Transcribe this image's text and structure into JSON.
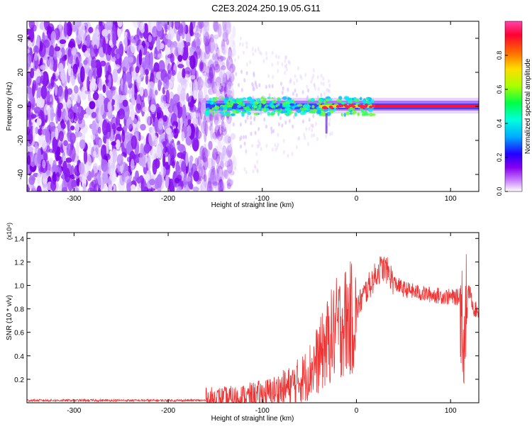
{
  "title": "C2E3.2024.250.19.05.G11",
  "chart_data": [
    {
      "type": "heatmap",
      "xlabel": "Height of straight line (km)",
      "ylabel": "Frequency (Hz)",
      "xlim": [
        -350,
        130
      ],
      "ylim": [
        -50,
        50
      ],
      "xticks": [
        -300,
        -200,
        -100,
        0,
        100
      ],
      "yticks": [
        -40,
        -20,
        0,
        20,
        40
      ],
      "colorbar": {
        "label": "Normalized spectral amplitude",
        "range": [
          0,
          1
        ],
        "ticks": [
          0.0,
          0.2,
          0.4,
          0.6,
          0.8
        ],
        "tick_labels": [
          "0.0",
          "0.2",
          "0.4",
          "0.6",
          "0.8"
        ],
        "colors": [
          "#ffffff",
          "#cc88ff",
          "#8800ee",
          "#2200ff",
          "#00aaff",
          "#00ffdd",
          "#00ff44",
          "#aaff00",
          "#ffdd00",
          "#ff6600",
          "#ff0033",
          "#ff44aa"
        ]
      },
      "description_points": {
        "noise_region": [
          -350,
          -145
        ],
        "signal_onset_km": -160,
        "signal_center_freq_hz": 0,
        "signal_strong_from_km": 20
      }
    },
    {
      "type": "line",
      "xlabel": "Height of straight line (km)",
      "ylabel": "SNR (10 * v/v)",
      "yscale_label": "(x10⁴)",
      "xlim": [
        -350,
        130
      ],
      "ylim": [
        0,
        1.45
      ],
      "xticks": [
        -300,
        -200,
        -100,
        0,
        100
      ],
      "yticks": [
        0.2,
        0.4,
        0.6,
        0.8,
        1.0,
        1.2,
        1.4
      ],
      "ytick_labels": [
        "0.2",
        "0.4",
        "0.6",
        "0.8",
        "1.0",
        "1.2",
        "1.4"
      ],
      "color": "#ee3333",
      "envelope": {
        "x": [
          -350,
          -250,
          -160,
          -130,
          -110,
          -90,
          -70,
          -55,
          -45,
          -35,
          -28,
          -22,
          -15,
          -10,
          -5,
          0,
          10,
          20,
          25,
          30,
          35,
          40,
          50,
          60,
          70,
          80,
          90,
          100,
          105,
          110,
          114,
          117,
          120,
          125,
          130
        ],
        "y": [
          0.02,
          0.02,
          0.02,
          0.03,
          0.05,
          0.08,
          0.14,
          0.22,
          0.32,
          0.45,
          0.55,
          0.62,
          0.68,
          0.7,
          0.72,
          0.8,
          0.95,
          1.08,
          1.14,
          1.15,
          1.1,
          1.02,
          0.97,
          0.95,
          0.93,
          0.92,
          0.91,
          0.9,
          0.9,
          0.9,
          0.6,
          0.9,
          0.95,
          0.8,
          0.78
        ]
      }
    }
  ]
}
